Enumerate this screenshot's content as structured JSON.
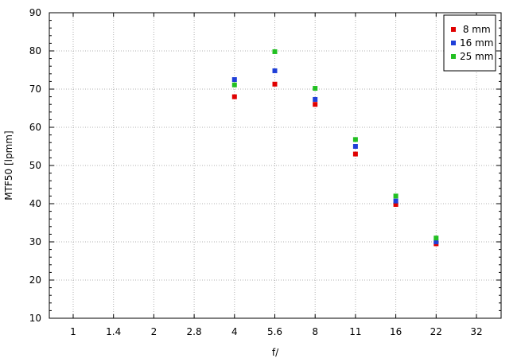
{
  "chart_data": {
    "type": "scatter",
    "title": "",
    "xlabel": "f/",
    "ylabel": "MTF50 [lpmm]",
    "x_categories": [
      "1",
      "1.4",
      "2",
      "2.8",
      "4",
      "5.6",
      "8",
      "11",
      "16",
      "22",
      "32"
    ],
    "ylim": [
      10,
      90
    ],
    "yticks": [
      10,
      20,
      30,
      40,
      50,
      60,
      70,
      80,
      90
    ],
    "grid": true,
    "legend_position": "top-right",
    "series": [
      {
        "name": " 8 mm",
        "color": "#e00000",
        "points": [
          {
            "x": "4",
            "y": 68.0
          },
          {
            "x": "5.6",
            "y": 71.3
          },
          {
            "x": "8",
            "y": 66.0
          },
          {
            "x": "11",
            "y": 53.0
          },
          {
            "x": "16",
            "y": 39.8
          },
          {
            "x": "22",
            "y": 29.5
          }
        ]
      },
      {
        "name": "16 mm",
        "color": "#1f3fd8",
        "points": [
          {
            "x": "4",
            "y": 72.5
          },
          {
            "x": "5.6",
            "y": 74.8
          },
          {
            "x": "8",
            "y": 67.3
          },
          {
            "x": "11",
            "y": 55.0
          },
          {
            "x": "16",
            "y": 40.7
          },
          {
            "x": "22",
            "y": 30.0
          }
        ]
      },
      {
        "name": "25 mm",
        "color": "#22c022",
        "points": [
          {
            "x": "4",
            "y": 71.1
          },
          {
            "x": "5.6",
            "y": 79.8
          },
          {
            "x": "8",
            "y": 70.2
          },
          {
            "x": "11",
            "y": 56.8
          },
          {
            "x": "16",
            "y": 42.0
          },
          {
            "x": "22",
            "y": 31.0
          }
        ]
      }
    ]
  }
}
